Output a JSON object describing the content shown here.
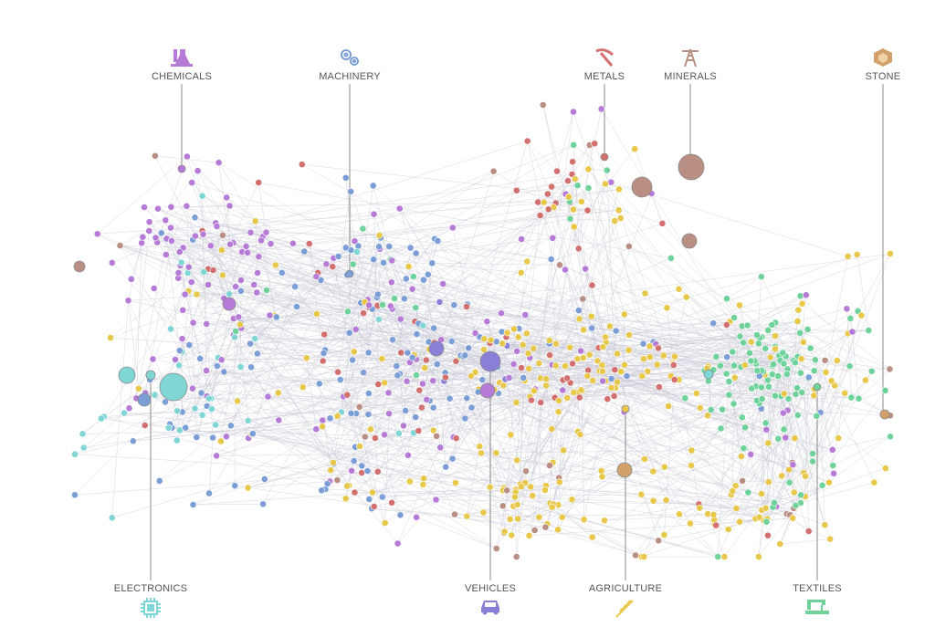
{
  "categories": [
    {
      "key": "chemicals",
      "label": "CHEMICALS",
      "icon": "flask-icon",
      "color": "#b57bd6"
    },
    {
      "key": "machinery",
      "label": "MACHINERY",
      "icon": "gears-icon",
      "color": "#7b9ed6"
    },
    {
      "key": "metals",
      "label": "METALS",
      "icon": "pickaxe-icon",
      "color": "#d27070"
    },
    {
      "key": "minerals",
      "label": "MINERALS",
      "icon": "oil-rig-icon",
      "color": "#b98f83"
    },
    {
      "key": "stone",
      "label": "STONE",
      "icon": "gem-icon",
      "color": "#d2a06a"
    },
    {
      "key": "electronics",
      "label": "ELECTRONICS",
      "icon": "chip-icon",
      "color": "#7fd6d4"
    },
    {
      "key": "vehicles",
      "label": "VEHICLES",
      "icon": "car-icon",
      "color": "#8a7fd6"
    },
    {
      "key": "agriculture",
      "label": "AGRICULTURE",
      "icon": "wheat-icon",
      "color": "#e8c84a"
    },
    {
      "key": "textiles",
      "label": "TEXTILES",
      "icon": "sewing-machine-icon",
      "color": "#6fd29a"
    }
  ],
  "colors": {
    "edge": "#c9c9d6",
    "leader": "#888888",
    "node_stroke": "#8a8a8a"
  }
}
